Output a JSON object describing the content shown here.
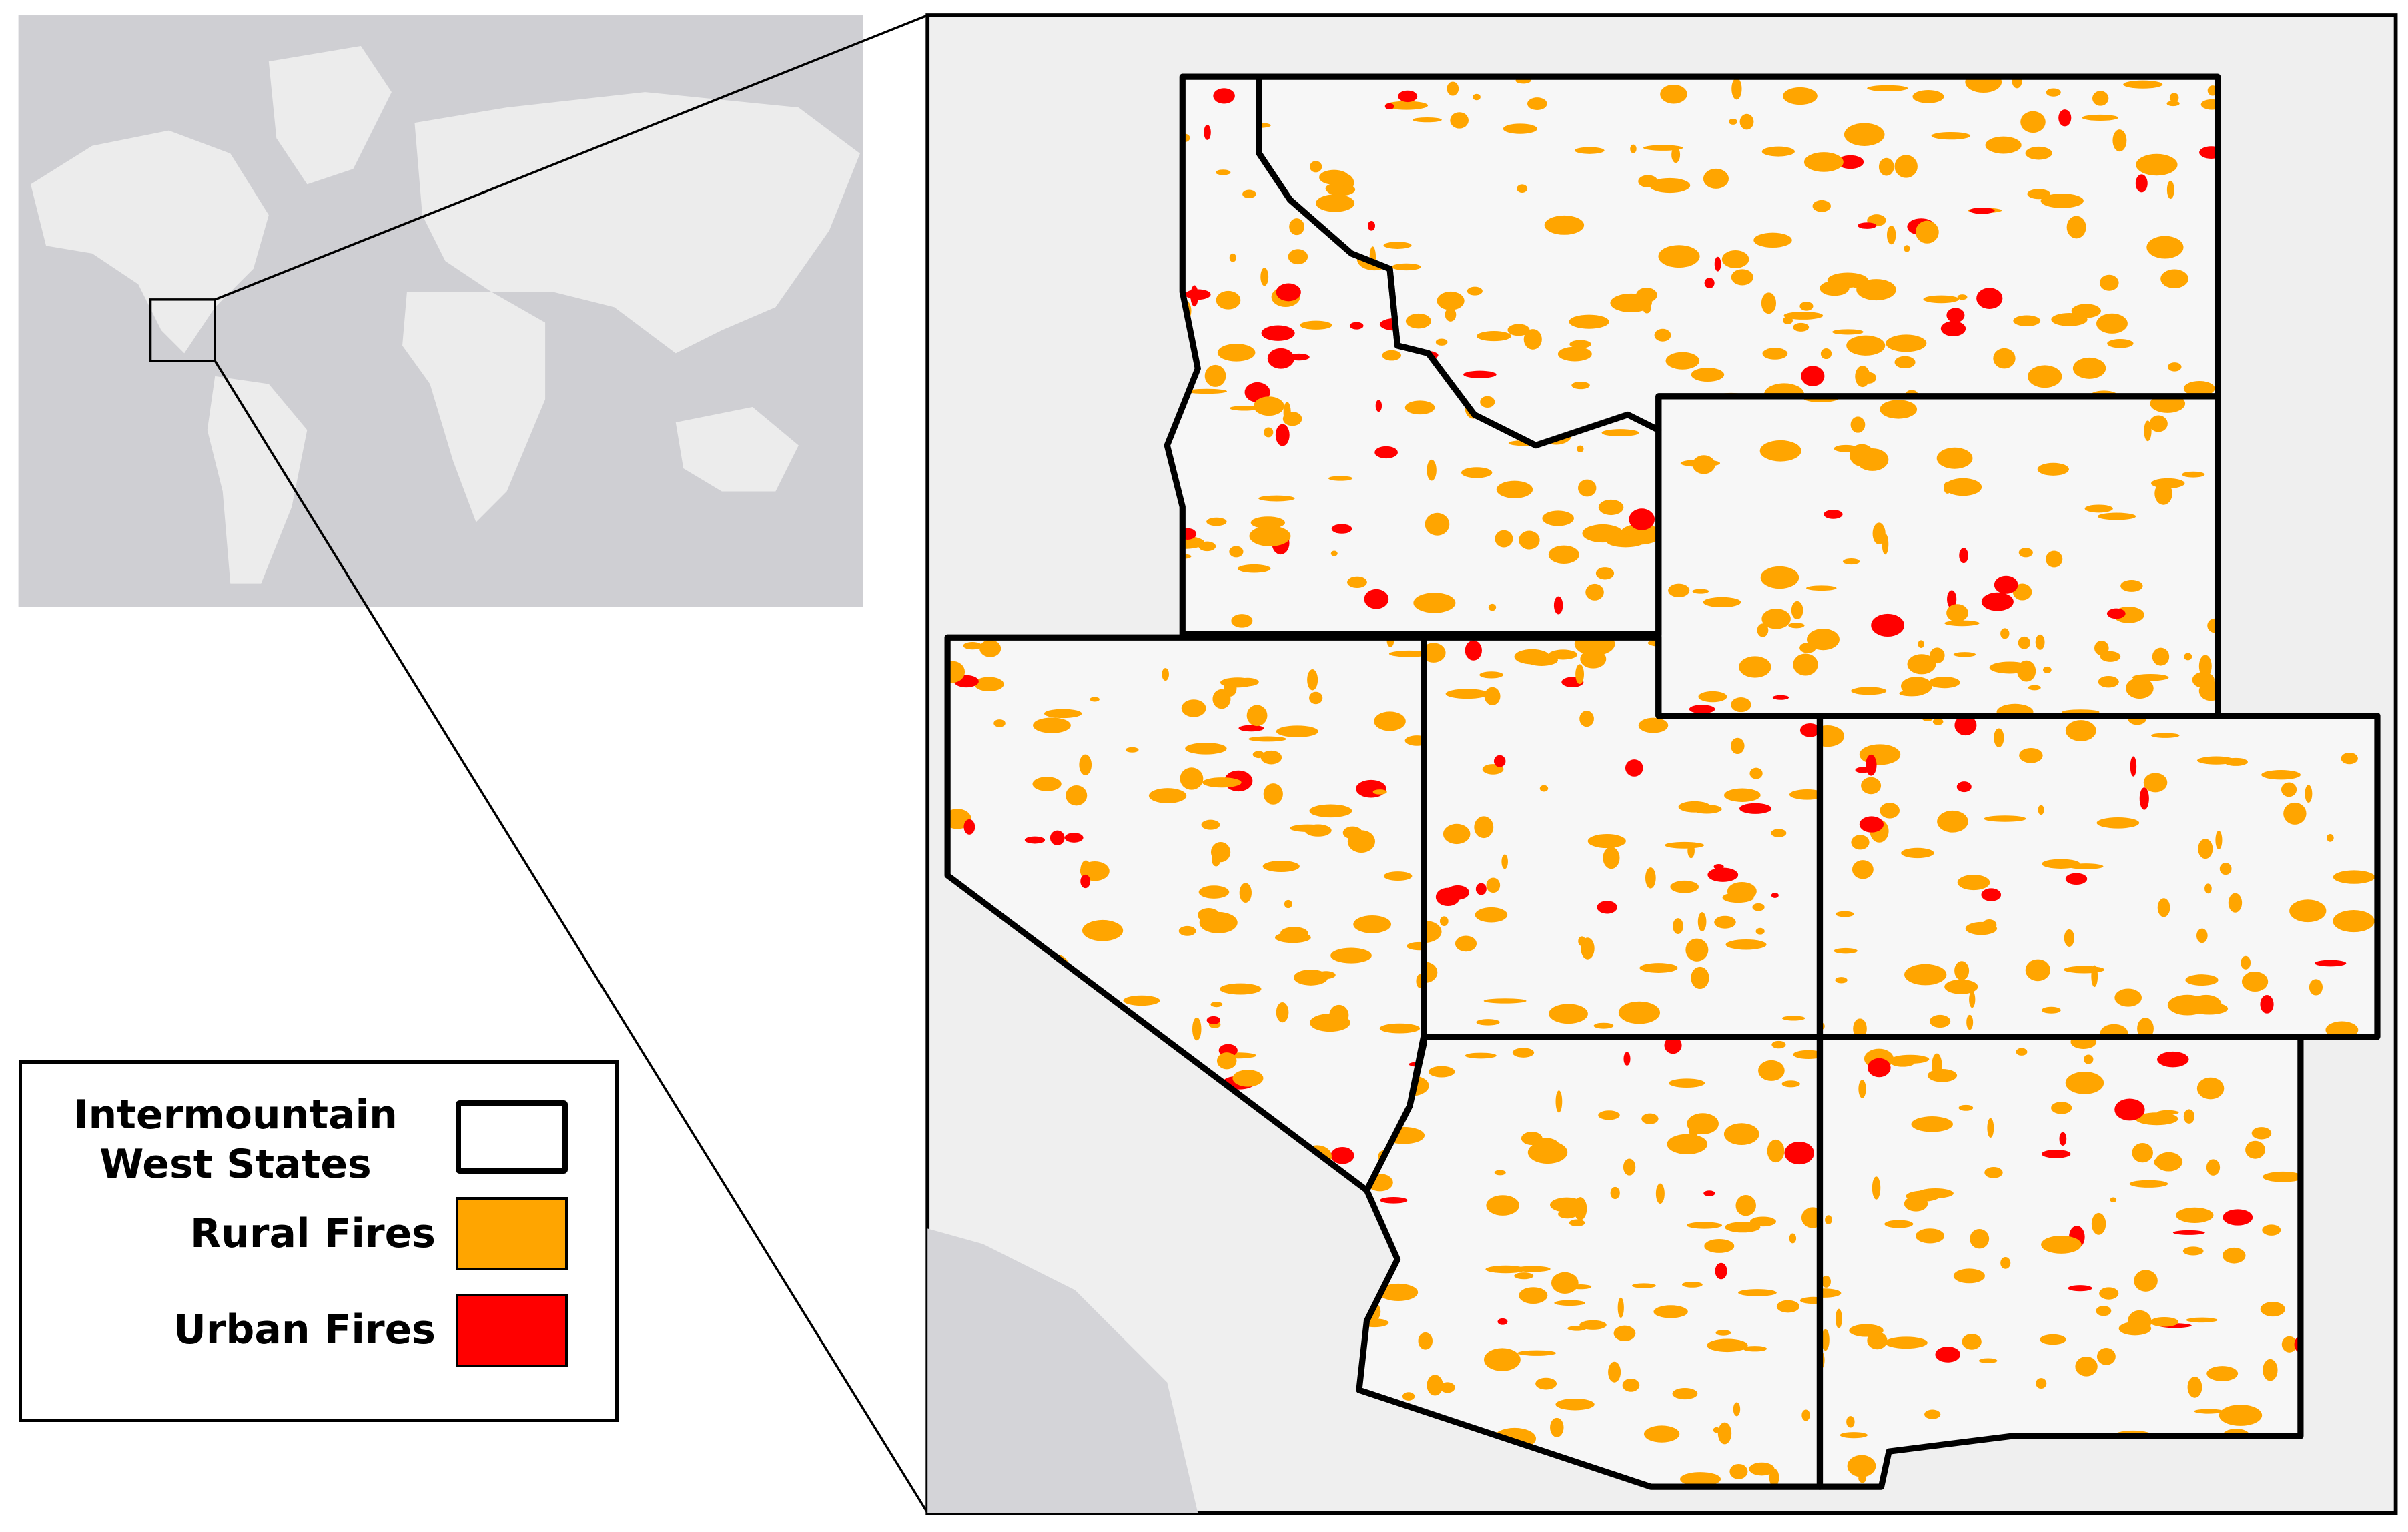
{
  "legend": {
    "items": [
      {
        "label": "Intermountain West States"
      },
      {
        "label": "Rural Fires",
        "color": "#ffa500"
      },
      {
        "label": "Urban Fires",
        "color": "#ff0000"
      }
    ]
  }
}
